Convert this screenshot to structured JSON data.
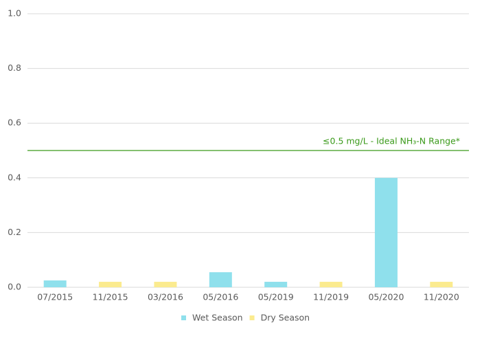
{
  "chart_data": {
    "type": "bar",
    "categories": [
      "07/2015",
      "11/2015",
      "03/2016",
      "05/2016",
      "05/2019",
      "11/2019",
      "05/2020",
      "11/2020"
    ],
    "series": [
      {
        "name": "Wet Season",
        "color": "#8fe0ec",
        "values": [
          0.025,
          null,
          null,
          0.055,
          0.02,
          null,
          0.4,
          null
        ]
      },
      {
        "name": "Dry Season",
        "color": "#fbeb8f",
        "values": [
          null,
          0.02,
          0.02,
          null,
          null,
          0.02,
          null,
          0.02
        ]
      }
    ],
    "ylim": [
      0,
      1
    ],
    "yticks": [
      {
        "value": 0,
        "label": "0.0"
      },
      0.2,
      0.4,
      0.6,
      0.8,
      {
        "value": 1,
        "label": "1.0"
      }
    ],
    "grid": true,
    "reference_line": {
      "value": 0.5,
      "label": "≤0.5 mg/L - Ideal NH₃-N Range*",
      "color": "#3a9a1a"
    },
    "legend": "bottom"
  }
}
